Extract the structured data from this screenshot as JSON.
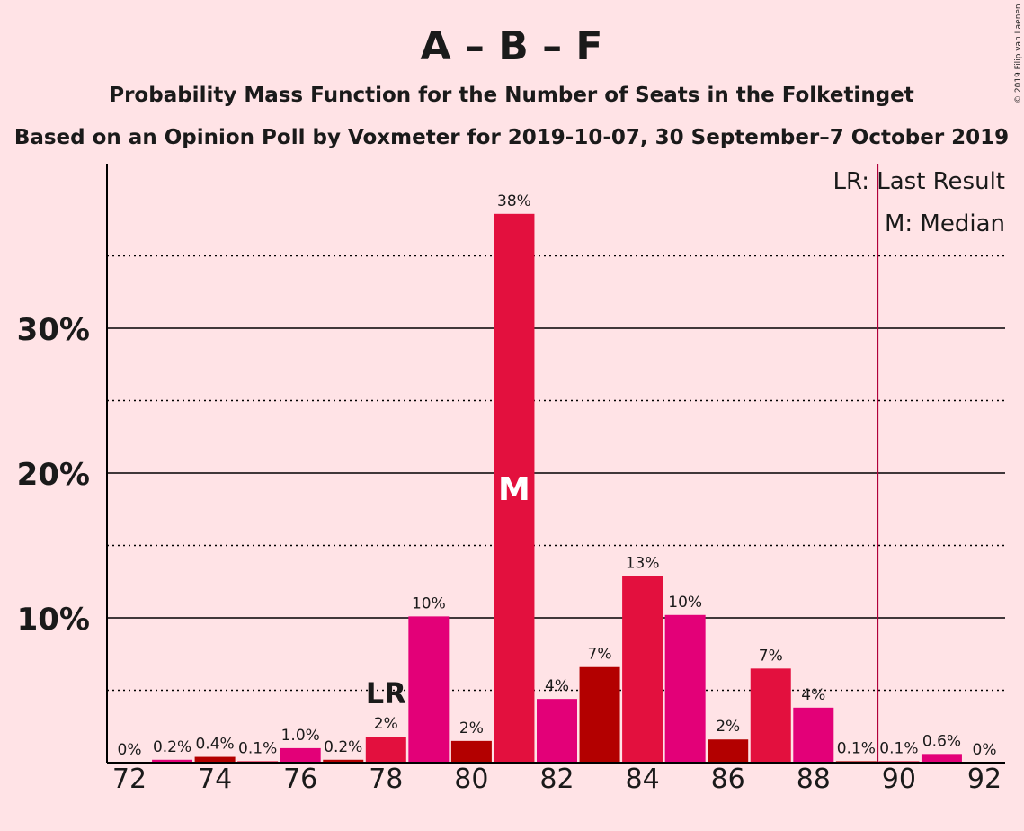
{
  "copyright": "© 2019 Filip van Laenen",
  "chart_data": {
    "type": "bar",
    "title": "A – B – F",
    "subtitle": "Probability Mass Function for the Number of Seats in the Folketinget",
    "subtitle2": "Based on an Opinion Poll by Voxmeter for 2019-10-07, 30 September–7 October 2019",
    "legend": {
      "last_result": "LR: Last Result",
      "median": "M: Median",
      "placement": "top-right"
    },
    "x": [
      72,
      73,
      74,
      75,
      76,
      77,
      78,
      79,
      80,
      81,
      82,
      83,
      84,
      85,
      86,
      87,
      88,
      89,
      90,
      91,
      92
    ],
    "values": [
      0,
      0.2,
      0.4,
      0.1,
      1.0,
      0.2,
      1.8,
      10.1,
      1.5,
      37.9,
      4.4,
      6.6,
      12.9,
      10.2,
      1.6,
      6.5,
      3.8,
      0.1,
      0.1,
      0.6,
      0
    ],
    "data_labels": [
      "0%",
      "0.2%",
      "0.4%",
      "0.1%",
      "1.0%",
      "0.2%",
      "2%",
      "10%",
      "2%",
      "38%",
      "4%",
      "7%",
      "13%",
      "10%",
      "2%",
      "7%",
      "4%",
      "0.1%",
      "0.1%",
      "0.6%",
      "0%"
    ],
    "bar_colors": [
      "#E3103E",
      "#E30078",
      "#B30000",
      "#E3103E",
      "#E30078",
      "#B30000",
      "#E3103E",
      "#E30078",
      "#B30000",
      "#E3103E",
      "#E30078",
      "#B30000",
      "#E3103E",
      "#E30078",
      "#B30000",
      "#E3103E",
      "#E30078",
      "#B30000",
      "#E3103E",
      "#E30078",
      "#B30000"
    ],
    "x_ticks": [
      72,
      74,
      76,
      78,
      80,
      82,
      84,
      86,
      88,
      90,
      92
    ],
    "y_ticks": [
      10,
      20,
      30
    ],
    "y_tick_labels": [
      "10%",
      "20%",
      "30%"
    ],
    "ylim": [
      0,
      40
    ],
    "grid_dotted": [
      5,
      15,
      25,
      35
    ],
    "grid_solid": [
      10,
      20,
      30
    ],
    "last_result_seat": 78,
    "last_result_label": "LR",
    "median_seat": 81,
    "median_label": "M",
    "majority_line_x": 89.5,
    "majority_line_color": "#B0003A"
  }
}
